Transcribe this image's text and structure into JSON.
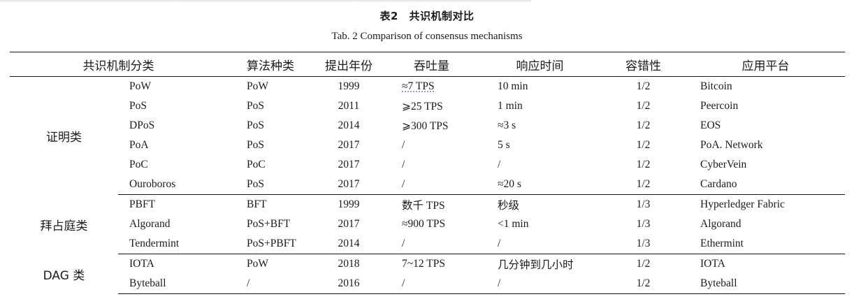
{
  "caption": {
    "cn": "表2　共识机制对比",
    "en": "Tab.  2    Comparison of consensus mechanisms"
  },
  "table": {
    "headers": [
      "共识机制分类",
      "算法种类",
      "提出年份",
      "吞吐量",
      "响应时间",
      "容错性",
      "应用平台"
    ],
    "groups": [
      {
        "category": "证明类",
        "rows": [
          [
            "PoW",
            "PoW",
            "1999",
            "≈7 TPS",
            "10 min",
            "1/2",
            "Bitcoin"
          ],
          [
            "PoS",
            "PoS",
            "2011",
            "⩾25 TPS",
            "1 min",
            "1/2",
            "Peercoin"
          ],
          [
            "DPoS",
            "PoS",
            "2014",
            "⩾300 TPS",
            "≈3 s",
            "1/2",
            "EOS"
          ],
          [
            "PoA",
            "PoS",
            "2017",
            "/",
            "5 s",
            "1/2",
            "PoA. Network"
          ],
          [
            "PoC",
            "PoC",
            "2017",
            "/",
            "/",
            "1/2",
            "CyberVein"
          ],
          [
            "Ouroboros",
            "PoS",
            "2017",
            "/",
            "≈20 s",
            "1/2",
            "Cardano"
          ]
        ]
      },
      {
        "category": "拜占庭类",
        "rows": [
          [
            "PBFT",
            "BFT",
            "1999",
            "数千 TPS",
            "秒级",
            "1/3",
            "Hyperledger Fabric"
          ],
          [
            "Algorand",
            "PoS+BFT",
            "2017",
            "≈900 TPS",
            "<1 min",
            "1/3",
            "Algorand"
          ],
          [
            "Tendermint",
            "PoS+PBFT",
            "2014",
            "/",
            "/",
            "1/3",
            "Ethermint"
          ]
        ]
      },
      {
        "category": "DAG 类",
        "rows": [
          [
            "IOTA",
            "PoW",
            "2018",
            "7~12 TPS",
            "几分钟到几小时",
            "1/2",
            "IOTA"
          ],
          [
            "Byteball",
            "/",
            "2016",
            "/",
            "/",
            "1/2",
            "Byteball"
          ]
        ]
      }
    ]
  }
}
